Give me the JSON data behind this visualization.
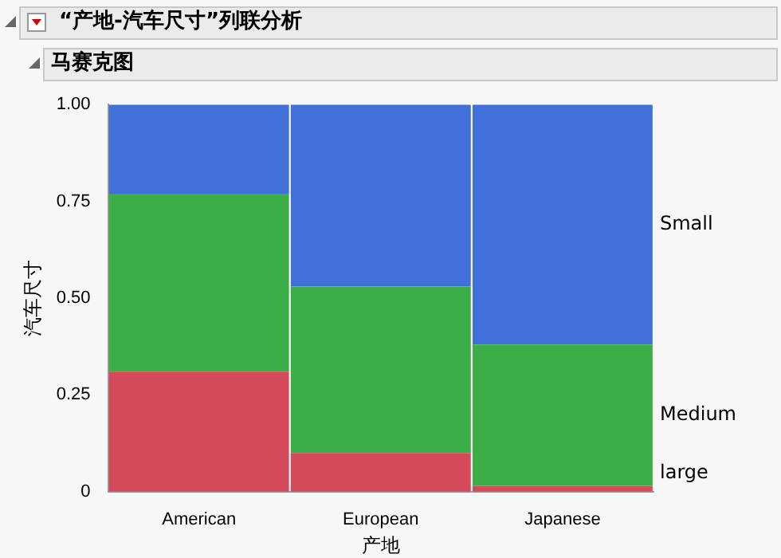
{
  "chart_data": {
    "type": "bar",
    "title": "“产地-汽车尺寸”列联分析",
    "subtitle": "马赛克图",
    "xlabel": "产地",
    "ylabel": "汽车尺寸",
    "categories": [
      "American",
      "European",
      "Japanese"
    ],
    "stacked": true,
    "series": [
      {
        "name": "large",
        "color": "#d54a5a",
        "values": [
          0.31,
          0.1,
          0.015
        ]
      },
      {
        "name": "Medium",
        "color": "#3cae47",
        "values": [
          0.46,
          0.43,
          0.365
        ]
      },
      {
        "name": "Small",
        "color": "#4170da",
        "values": [
          0.23,
          0.47,
          0.62
        ]
      }
    ],
    "ylim": [
      0,
      1
    ],
    "yticks": [
      0,
      {
        "value": 0.25,
        "label": "0.25"
      },
      {
        "value": 0.5,
        "label": "0.50"
      },
      {
        "value": 0.75,
        "label": "0.75"
      },
      {
        "value": 1,
        "label": "1.00"
      }
    ],
    "grid": false,
    "legend": false
  }
}
